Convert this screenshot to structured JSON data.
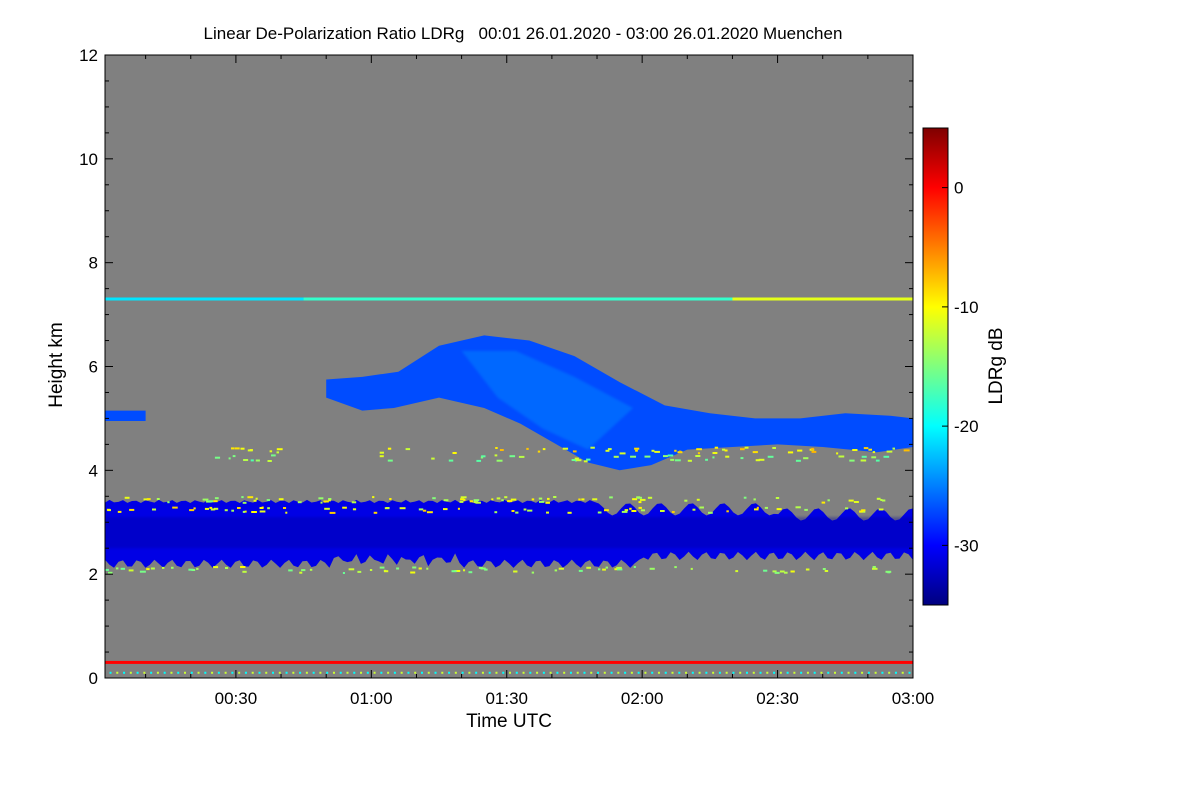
{
  "chart_data": {
    "type": "heatmap",
    "title": "Linear De-Polarization Ratio LDRg   00:01 26.01.2020 - 03:00 26.01.2020 Muenchen",
    "xlabel": "Time UTC",
    "ylabel": "Height km",
    "x_range_minutes": [
      1,
      180
    ],
    "y_range_km": [
      0,
      12
    ],
    "x_ticks": [
      {
        "minutes": 30,
        "label": "00:30"
      },
      {
        "minutes": 60,
        "label": "01:00"
      },
      {
        "minutes": 90,
        "label": "01:30"
      },
      {
        "minutes": 120,
        "label": "02:00"
      },
      {
        "minutes": 150,
        "label": "02:30"
      },
      {
        "minutes": 180,
        "label": "03:00"
      }
    ],
    "y_ticks": [
      0,
      2,
      4,
      6,
      8,
      10,
      12
    ],
    "background_color": "#808080",
    "colorbar": {
      "label": "LDRg dB",
      "range_db": [
        -35,
        5
      ],
      "ticks": [
        0,
        -10,
        -20,
        -30
      ],
      "colormap": [
        "#00007f",
        "#0000ff",
        "#007fff",
        "#00ffff",
        "#7fff7f",
        "#ffff00",
        "#ff7f00",
        "#ff0000",
        "#7f0000"
      ]
    },
    "features": [
      {
        "name": "lower cloud layer",
        "t_start_min": 1,
        "t_end_min": 180,
        "base_km": 2.2,
        "top_km": 3.4,
        "ldr_db": -31
      },
      {
        "name": "upper sloping cloud",
        "t_start_min": 50,
        "t_end_min": 180,
        "base_km": 4.0,
        "top_km": 6.6,
        "ldr_db": -27
      },
      {
        "name": "thin layer near 7.3 km",
        "t_start_min": 1,
        "t_end_min": 180,
        "height_km": 7.3,
        "ldr_db": -18
      },
      {
        "name": "near-ground layer",
        "t_start_min": 1,
        "t_end_min": 180,
        "height_km": 0.3,
        "ldr_db": 0
      }
    ]
  }
}
